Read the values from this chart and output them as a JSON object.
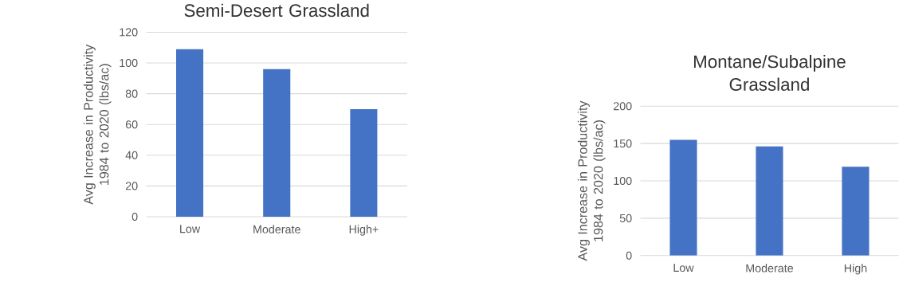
{
  "chart_data": [
    {
      "type": "bar",
      "title": "Semi-Desert  Grassland",
      "ylabel": "Avg Increase in Productivity 1984 to 2020 (lbs/ac)",
      "categories": [
        "Low",
        "Moderate",
        "High+"
      ],
      "values": [
        109,
        96,
        70
      ],
      "color": "#4472c4",
      "ylim": [
        0,
        120
      ],
      "yticks": [
        0,
        20,
        40,
        60,
        80,
        100,
        120
      ],
      "grid": "y"
    },
    {
      "type": "bar",
      "title": "Montane/Subalpine Grassland",
      "ylabel": "Avg Increase in Productivity 1984 to 2020 (lbs/ac)",
      "categories": [
        "Low",
        "Moderate",
        "High"
      ],
      "values": [
        155,
        146,
        119
      ],
      "color": "#4472c4",
      "ylim": [
        0,
        200
      ],
      "yticks": [
        0,
        50,
        100,
        150,
        200
      ],
      "grid": "y"
    }
  ]
}
